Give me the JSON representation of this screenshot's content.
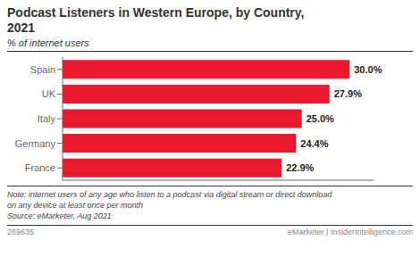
{
  "chart_data": {
    "type": "bar",
    "orientation": "horizontal",
    "title": "Podcast Listeners in Western Europe, by Country, 2021",
    "subtitle": "% of internet users",
    "categories": [
      "Spain",
      "UK",
      "Italy",
      "Germany",
      "France"
    ],
    "values": [
      30.0,
      27.9,
      25.0,
      24.4,
      22.9
    ],
    "value_labels": [
      "30.0%",
      "27.9%",
      "25.0%",
      "24.4%",
      "22.9%"
    ],
    "data_labels": true,
    "color": "#e8192c",
    "xlim": [
      0,
      32.5
    ],
    "tick_labels": "y",
    "annotations": [
      "Note: internet users of any age who listen to a podcast via digital stream or direct download",
      "on any device at least once per month",
      "Source: eMarketer, Aug 2021",
      "269635",
      "eMarketer | InsiderIntelligence.com"
    ]
  }
}
